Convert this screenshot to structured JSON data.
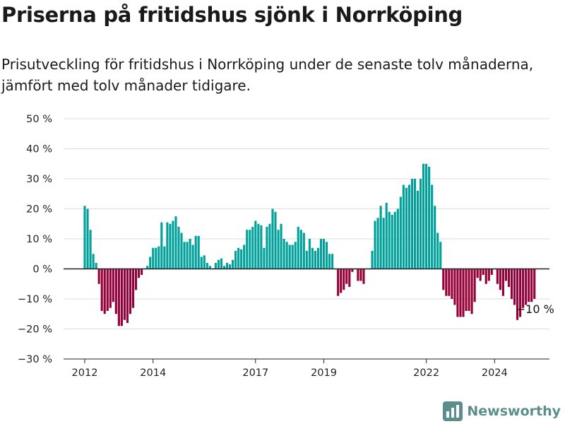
{
  "header": {
    "title": "Priserna på fritidshus sjönk i Norrköping",
    "subtitle": "Prisutveckling för fritidshus i Norrköping under de senaste tolv månaderna, jämfört med tolv månader tidigare."
  },
  "brand": {
    "name": "Newsworthy",
    "icon": "bar-chart-logo-icon",
    "color": "#5c8f8b"
  },
  "chart_data": {
    "type": "bar",
    "title": "Priserna på fritidshus sjönk i Norrköping",
    "subtitle": "Prisutveckling för fritidshus i Norrköping under de senaste tolv månaderna, jämfört med tolv månader tidigare.",
    "xlabel": "",
    "ylabel": "",
    "ylim": [
      -30,
      50
    ],
    "yticks": [
      50,
      40,
      30,
      20,
      10,
      0,
      -10,
      -20,
      -30
    ],
    "ytick_labels": [
      "50 %",
      "40 %",
      "30 %",
      "20 %",
      "10 %",
      "0 %",
      "−10 %",
      "−20 %",
      "−30 %"
    ],
    "xticks": [
      "2012",
      "2014",
      "2017",
      "2019",
      "2022",
      "2024"
    ],
    "x_start": "2012-01",
    "frequency": "monthly",
    "grid": "horizontal",
    "colors": {
      "positive": "#00a19a",
      "negative": "#960038",
      "zero_line": "#222222",
      "grid": "#dddddd"
    },
    "end_label": "−10 %",
    "values": [
      21,
      20,
      13,
      5,
      2,
      -5,
      -14,
      -15,
      -14,
      -13,
      -11,
      -15,
      -19,
      -19,
      -17,
      -18,
      -15,
      -13,
      -7,
      -3,
      -2,
      0,
      1,
      4,
      7,
      7,
      7.5,
      15.5,
      7.5,
      15.5,
      15,
      16,
      17.5,
      14,
      12,
      9,
      9,
      10,
      8,
      11,
      11,
      4,
      4.5,
      2,
      1,
      0,
      2,
      3,
      3.5,
      1,
      2,
      1.5,
      3,
      6,
      7,
      6.5,
      8,
      13,
      13,
      14,
      16,
      15,
      14.5,
      7,
      14,
      15,
      20,
      19,
      13,
      15,
      10,
      9,
      8,
      8,
      9,
      14,
      13,
      12,
      6,
      10,
      7,
      6,
      7,
      10,
      10,
      9,
      5,
      5,
      0,
      -9,
      -8,
      -7,
      -5,
      -6,
      -1,
      0,
      -4,
      -4,
      -5,
      0,
      0,
      6,
      16,
      17,
      21,
      17,
      22,
      19,
      18,
      19,
      20,
      24,
      28,
      27,
      28,
      30,
      30,
      26,
      30,
      35,
      35,
      34,
      28,
      21,
      12,
      9,
      -7,
      -9,
      -9,
      -10,
      -12,
      -16,
      -16,
      -16,
      -14,
      -14,
      -15,
      -11,
      -3,
      -4,
      -2,
      -5,
      -4,
      -2,
      0,
      -5,
      -7,
      -9,
      -4,
      -6,
      -10,
      -12,
      -17,
      -16,
      -13,
      -12,
      -11,
      -11,
      -10
    ]
  }
}
